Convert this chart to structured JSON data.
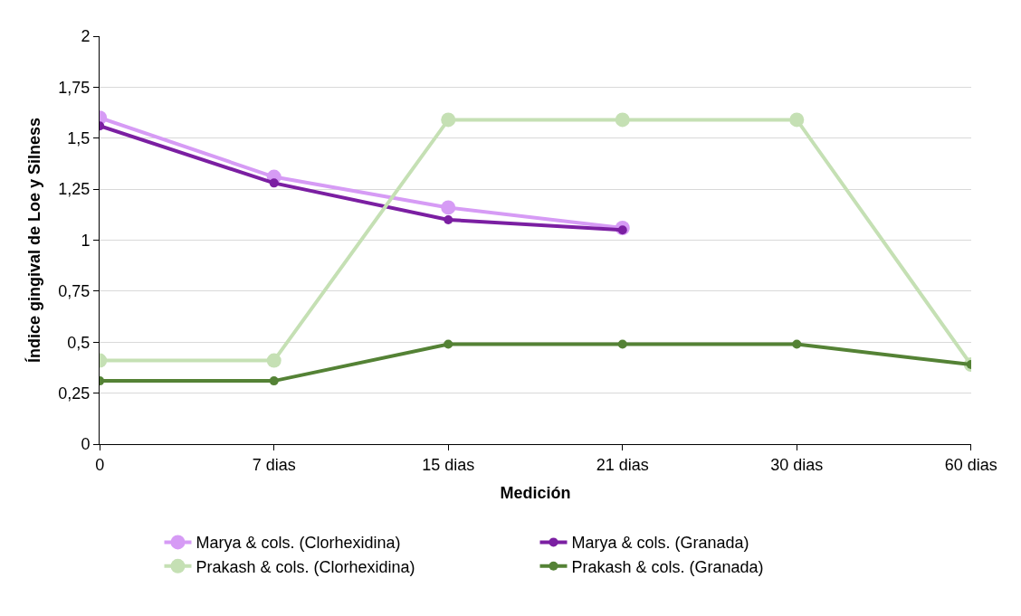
{
  "chart_data": {
    "type": "line",
    "xlabel": "Medición",
    "ylabel": "Índice gingival de Loe y Silness",
    "categories": [
      "0",
      "7 dias",
      "15 dias",
      "21 dias",
      "30 dias",
      "60 dias"
    ],
    "series": [
      {
        "name": "Marya & cols. (Clorhexidina)",
        "color": "#d69bf5",
        "values": [
          1.6,
          1.31,
          1.16,
          1.06,
          null,
          null
        ]
      },
      {
        "name": "Marya & cols. (Granada)",
        "color": "#7b1fa2",
        "values": [
          1.56,
          1.28,
          1.1,
          1.05,
          null,
          null
        ]
      },
      {
        "name": "Prakash & cols. (Clorhexidina)",
        "color": "#c5e0b4",
        "values": [
          0.41,
          0.41,
          1.59,
          1.59,
          1.59,
          0.39
        ]
      },
      {
        "name": "Prakash & cols. (Granada)",
        "color": "#548235",
        "values": [
          0.31,
          0.31,
          0.49,
          0.49,
          0.49,
          0.39
        ]
      }
    ],
    "ylim": [
      0,
      2
    ],
    "yticks": [
      0,
      {
        "value": 0.25,
        "label": "0,25"
      },
      {
        "value": 0.5,
        "label": "0,5"
      },
      {
        "value": 0.75,
        "label": "0,75"
      },
      1,
      {
        "value": 1.25,
        "label": "1,25"
      },
      {
        "value": 1.5,
        "label": "1,5"
      },
      {
        "value": 1.75,
        "label": "1,75"
      },
      2
    ],
    "grid": "y",
    "legend": "bottom",
    "marker": "circle",
    "line_style": "solid"
  }
}
